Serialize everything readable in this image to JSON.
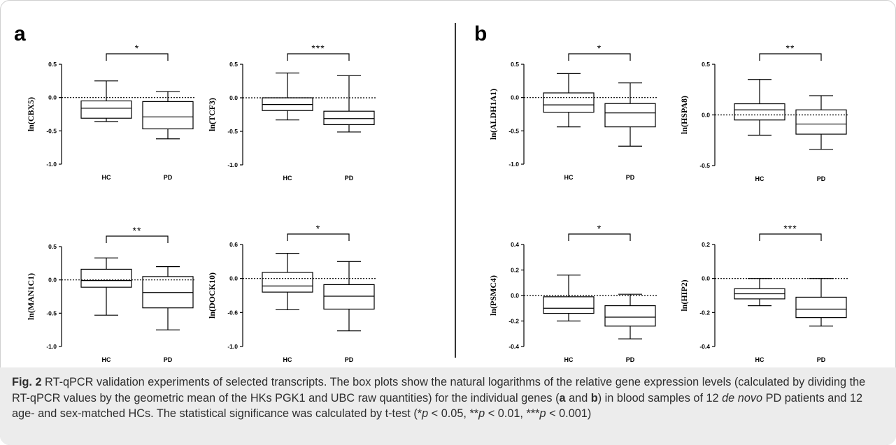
{
  "panels": [
    {
      "letter": "a"
    },
    {
      "letter": "b"
    }
  ],
  "chart_data": [
    {
      "type": "box",
      "panel": "a",
      "ylabel": "ln(CBX5)",
      "yticks": [
        "0.5",
        "0.0",
        "-0.5",
        "-1.0"
      ],
      "ylim": [
        -1.0,
        0.5
      ],
      "baseline": 0.0,
      "categories": [
        "HC",
        "PD"
      ],
      "significance": "*",
      "boxes": [
        {
          "category": "HC",
          "min": -0.36,
          "q1": -0.31,
          "median": -0.16,
          "q3": -0.05,
          "max": 0.25
        },
        {
          "category": "PD",
          "min": -0.62,
          "q1": -0.47,
          "median": -0.29,
          "q3": -0.06,
          "max": 0.09
        }
      ]
    },
    {
      "type": "box",
      "panel": "a",
      "ylabel": "ln(TCF3)",
      "yticks": [
        "0.5",
        "0.0",
        "-0.5",
        "-1.0"
      ],
      "ylim": [
        -1.0,
        0.5
      ],
      "baseline": 0.0,
      "categories": [
        "HC",
        "PD"
      ],
      "significance": "***",
      "boxes": [
        {
          "category": "HC",
          "min": -0.33,
          "q1": -0.19,
          "median": -0.1,
          "q3": 0.0,
          "max": 0.37
        },
        {
          "category": "PD",
          "min": -0.51,
          "q1": -0.4,
          "median": -0.31,
          "q3": -0.2,
          "max": 0.33
        }
      ]
    },
    {
      "type": "box",
      "panel": "a",
      "ylabel": "ln(MAN1C1)",
      "yticks": [
        "0.5",
        "0.0",
        "-0.5",
        "-1.0"
      ],
      "ylim": [
        -1.0,
        0.5
      ],
      "baseline": 0.0,
      "categories": [
        "HC",
        "PD"
      ],
      "significance": "**",
      "boxes": [
        {
          "category": "HC",
          "min": -0.53,
          "q1": -0.11,
          "median": -0.01,
          "q3": 0.16,
          "max": 0.33
        },
        {
          "category": "PD",
          "min": -0.75,
          "q1": -0.42,
          "median": -0.19,
          "q3": 0.05,
          "max": 0.2
        }
      ]
    },
    {
      "type": "box",
      "panel": "a",
      "ylabel": "ln(DOCK10)",
      "yticks": [
        "0.6",
        "0.0",
        "-0.6",
        "-1.0"
      ],
      "ylim": [
        -1.0,
        0.5
      ],
      "baseline": 0.0,
      "categories": [
        "HC",
        "PD"
      ],
      "significance": "*",
      "boxes": [
        {
          "category": "HC",
          "min": -0.46,
          "q1": -0.2,
          "median": -0.11,
          "q3": 0.09,
          "max": 0.37
        },
        {
          "category": "PD",
          "min": -0.77,
          "q1": -0.45,
          "median": -0.26,
          "q3": -0.09,
          "max": 0.25
        }
      ]
    },
    {
      "type": "box",
      "panel": "b",
      "ylabel": "ln(ALDH1A1)",
      "yticks": [
        "0.5",
        "0.0",
        "-0.5",
        "-1.0"
      ],
      "ylim": [
        -1.0,
        0.5
      ],
      "baseline": 0.0,
      "categories": [
        "HC",
        "PD"
      ],
      "significance": "*",
      "boxes": [
        {
          "category": "HC",
          "min": -0.44,
          "q1": -0.22,
          "median": -0.11,
          "q3": 0.07,
          "max": 0.36
        },
        {
          "category": "PD",
          "min": -0.73,
          "q1": -0.44,
          "median": -0.23,
          "q3": -0.09,
          "max": 0.22
        }
      ]
    },
    {
      "type": "box",
      "panel": "b",
      "ylabel": "ln(HSPA8)",
      "yticks": [
        "0.5",
        "0.0",
        "-0.5"
      ],
      "ylim": [
        -0.5,
        0.5
      ],
      "baseline": 0.0,
      "categories": [
        "HC",
        "PD"
      ],
      "significance": "**",
      "boxes": [
        {
          "category": "HC",
          "min": -0.2,
          "q1": -0.05,
          "median": 0.05,
          "q3": 0.11,
          "max": 0.35
        },
        {
          "category": "PD",
          "min": -0.34,
          "q1": -0.19,
          "median": -0.09,
          "q3": 0.05,
          "max": 0.19
        }
      ]
    },
    {
      "type": "box",
      "panel": "b",
      "ylabel": "ln(PSMC4)",
      "yticks": [
        "0.4",
        "0.2",
        "0.0",
        "-0.2",
        "-0.4"
      ],
      "ylim": [
        -0.4,
        0.4
      ],
      "baseline": 0.0,
      "categories": [
        "HC",
        "PD"
      ],
      "significance": "*",
      "boxes": [
        {
          "category": "HC",
          "min": -0.2,
          "q1": -0.14,
          "median": -0.1,
          "q3": -0.01,
          "max": 0.16
        },
        {
          "category": "PD",
          "min": -0.34,
          "q1": -0.24,
          "median": -0.17,
          "q3": -0.08,
          "max": 0.01
        }
      ]
    },
    {
      "type": "box",
      "panel": "b",
      "ylabel": "ln(HIP2)",
      "yticks": [
        "0.2",
        "0.0",
        "-0.2",
        "-0.4"
      ],
      "ylim": [
        -0.4,
        0.2
      ],
      "baseline": 0.0,
      "categories": [
        "HC",
        "PD"
      ],
      "significance": "***",
      "boxes": [
        {
          "category": "HC",
          "min": -0.16,
          "q1": -0.12,
          "median": -0.09,
          "q3": -0.06,
          "max": 0.0
        },
        {
          "category": "PD",
          "min": -0.28,
          "q1": -0.23,
          "median": -0.18,
          "q3": -0.11,
          "max": 0.0
        }
      ]
    }
  ],
  "caption": {
    "fig_label": "Fig. 2",
    "t1": " RT-qPCR validation experiments of selected transcripts. The box plots show the natural logarithms of the relative gene expression levels (calculated by dividing the RT-qPCR values by the geometric mean of the HKs PGK1 and UBC raw quantities) for the individual genes (",
    "a": "a",
    "t2": " and ",
    "b": "b",
    "t3": ") in blood samples of 12 ",
    "denovo": "de novo",
    "t4": " PD patients and 12 age- and sex-matched HCs. The statistical significance was calculated by t-test (*",
    "p1": "p",
    "t5": " < 0.05, **",
    "p2": "p",
    "t6": " < 0.01, ***",
    "p3": "p",
    "t7": " < 0.001)"
  }
}
